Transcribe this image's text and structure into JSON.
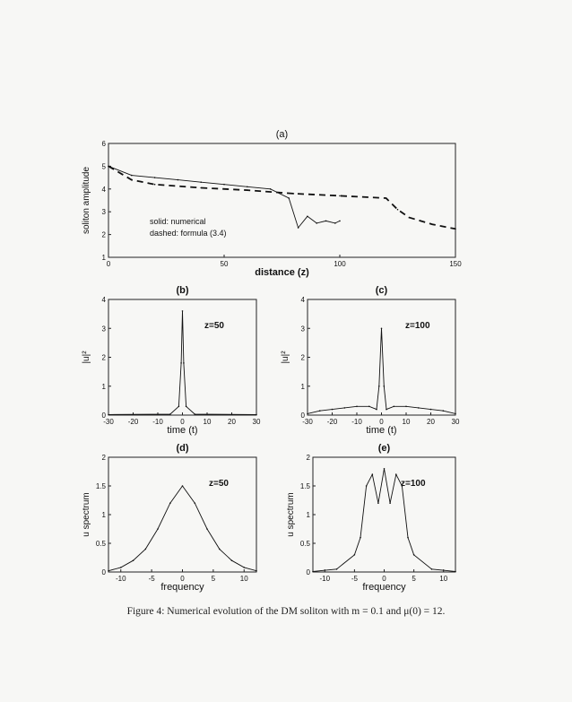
{
  "caption": "Figure 4: Numerical evolution of the DM soliton with m = 0.1 and μ(0) = 12.",
  "chart_data": [
    {
      "type": "line",
      "title": "(a)",
      "xlabel": "distance (z)",
      "ylabel": "soliton amplitude",
      "xlim": [
        0,
        150
      ],
      "ylim": [
        1,
        6
      ],
      "xticks": [
        "0",
        "50",
        "100",
        "150"
      ],
      "yticks": [
        "1",
        "2",
        "3",
        "4",
        "5",
        "6"
      ],
      "legend_text": [
        "solid: numerical",
        "dashed: formula (3.4)"
      ],
      "series": [
        {
          "name": "numerical",
          "style": "solid",
          "x": [
            0,
            10,
            20,
            30,
            40,
            50,
            60,
            70,
            78,
            82,
            86,
            90,
            94,
            98,
            100
          ],
          "y": [
            5.0,
            4.6,
            4.5,
            4.4,
            4.3,
            4.2,
            4.1,
            4.0,
            3.6,
            2.3,
            2.8,
            2.5,
            2.6,
            2.5,
            2.6
          ]
        },
        {
          "name": "formula (3.4)",
          "style": "dashed",
          "x": [
            0,
            10,
            20,
            40,
            60,
            80,
            100,
            120,
            125,
            130,
            140,
            150
          ],
          "y": [
            5.0,
            4.4,
            4.2,
            4.05,
            3.95,
            3.8,
            3.7,
            3.6,
            3.1,
            2.75,
            2.45,
            2.25
          ]
        }
      ]
    },
    {
      "type": "line",
      "title": "(b)",
      "xlabel": "time (t)",
      "ylabel": "|u|²",
      "xlim": [
        -30,
        30
      ],
      "ylim": [
        0,
        4
      ],
      "xticks": [
        "-30",
        "-20",
        "-10",
        "0",
        "10",
        "20",
        "30"
      ],
      "yticks": [
        "0",
        "1",
        "2",
        "3",
        "4"
      ],
      "annotation": "z=50",
      "series": [
        {
          "x": [
            -30,
            -5,
            -1.5,
            -0.5,
            0,
            0.5,
            1.5,
            5,
            30
          ],
          "y": [
            0.02,
            0.03,
            0.3,
            1.8,
            3.6,
            1.8,
            0.3,
            0.03,
            0.02
          ]
        }
      ]
    },
    {
      "type": "line",
      "title": "(c)",
      "xlabel": "time (t)",
      "ylabel": "|u|²",
      "xlim": [
        -30,
        30
      ],
      "ylim": [
        0,
        4
      ],
      "xticks": [
        "-30",
        "-20",
        "-10",
        "0",
        "10",
        "20",
        "30"
      ],
      "yticks": [
        "0",
        "1",
        "2",
        "3",
        "4"
      ],
      "annotation": "z=100",
      "series": [
        {
          "x": [
            -30,
            -25,
            -20,
            -15,
            -10,
            -5,
            -2,
            -1,
            0,
            1,
            2,
            5,
            10,
            15,
            20,
            25,
            30
          ],
          "y": [
            0.05,
            0.15,
            0.2,
            0.25,
            0.3,
            0.3,
            0.2,
            1.0,
            3.0,
            1.0,
            0.2,
            0.3,
            0.3,
            0.25,
            0.2,
            0.15,
            0.05
          ]
        }
      ]
    },
    {
      "type": "line",
      "title": "(d)",
      "xlabel": "frequency",
      "ylabel": "u spectrum",
      "xlim": [
        -12,
        12
      ],
      "ylim": [
        0,
        2
      ],
      "xticks": [
        "-10",
        "-5",
        "0",
        "5",
        "10"
      ],
      "yticks": [
        "0",
        "0.5",
        "1",
        "1.5",
        "2"
      ],
      "annotation": "z=50",
      "series": [
        {
          "x": [
            -12,
            -10,
            -8,
            -6,
            -4,
            -2,
            0,
            2,
            4,
            6,
            8,
            10,
            12
          ],
          "y": [
            0.02,
            0.08,
            0.2,
            0.4,
            0.75,
            1.2,
            1.5,
            1.2,
            0.75,
            0.4,
            0.2,
            0.08,
            0.02
          ]
        }
      ]
    },
    {
      "type": "line",
      "title": "(e)",
      "xlabel": "frequency",
      "ylabel": "u spectrum",
      "xlim": [
        -12,
        12
      ],
      "ylim": [
        0,
        2
      ],
      "xticks": [
        "-10",
        "-5",
        "0",
        "5",
        "10"
      ],
      "yticks": [
        "0",
        "0.5",
        "1",
        "1.5",
        "2"
      ],
      "annotation": "z=100",
      "series": [
        {
          "x": [
            -12,
            -8,
            -5,
            -4,
            -3,
            -2,
            -1,
            0,
            1,
            2,
            3,
            4,
            5,
            8,
            12
          ],
          "y": [
            0.01,
            0.05,
            0.3,
            0.6,
            1.5,
            1.7,
            1.2,
            1.8,
            1.2,
            1.7,
            1.5,
            0.6,
            0.3,
            0.05,
            0.01
          ]
        }
      ]
    }
  ]
}
